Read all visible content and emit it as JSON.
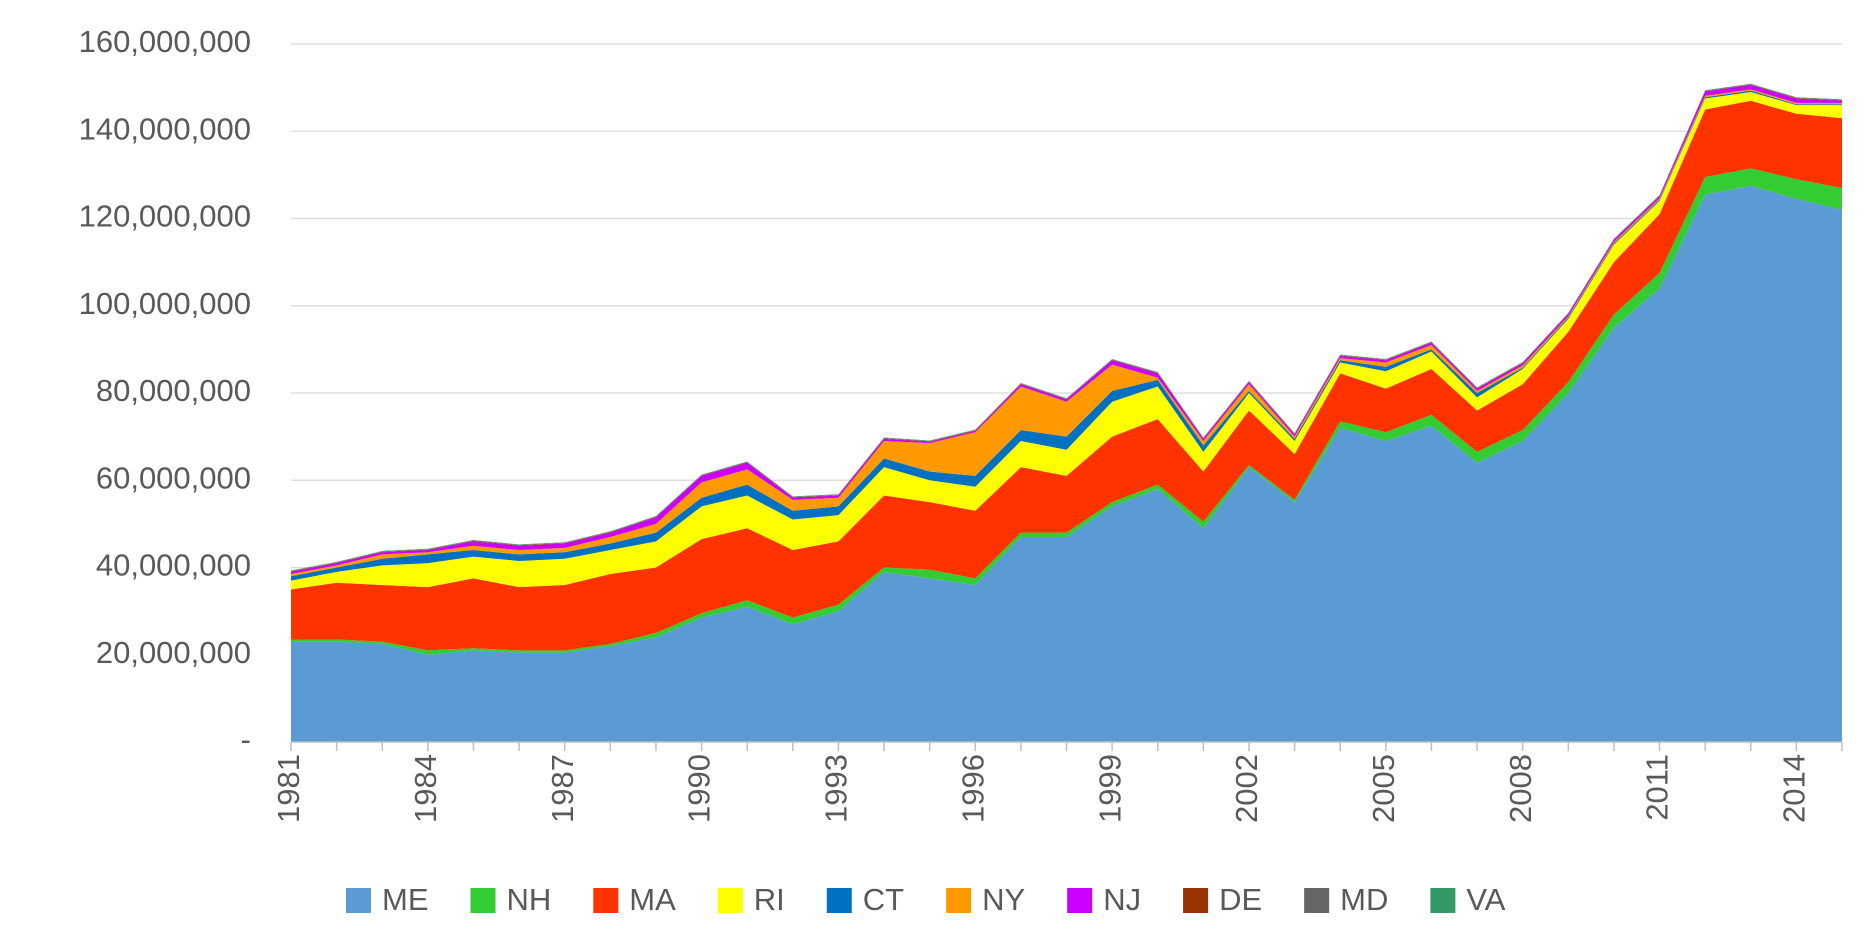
{
  "chart_data": {
    "type": "stacked-area",
    "x": [
      1981,
      1982,
      1983,
      1984,
      1985,
      1986,
      1987,
      1988,
      1989,
      1990,
      1991,
      1992,
      1993,
      1994,
      1995,
      1996,
      1997,
      1998,
      1999,
      2000,
      2001,
      2002,
      2003,
      2004,
      2005,
      2006,
      2007,
      2008,
      2009,
      2010,
      2011,
      2012,
      2013,
      2014,
      2015
    ],
    "xlim": [
      1981,
      2015
    ],
    "xticks": [
      1981,
      1984,
      1987,
      1990,
      1993,
      1996,
      1999,
      2002,
      2005,
      2008,
      2011,
      2014
    ],
    "ylim": [
      0,
      160000000
    ],
    "yticks": [
      {
        "value": 0,
        "label": "-"
      },
      {
        "value": 20000000,
        "label": "20,000,000"
      },
      {
        "value": 40000000,
        "label": "40,000,000"
      },
      {
        "value": 60000000,
        "label": "60,000,000"
      },
      {
        "value": 80000000,
        "label": "80,000,000"
      },
      {
        "value": 100000000,
        "label": "100,000,000"
      },
      {
        "value": 120000000,
        "label": "120,000,000"
      },
      {
        "value": 140000000,
        "label": "140,000,000"
      },
      {
        "value": 160000000,
        "label": "160,000,000"
      }
    ],
    "grid": true,
    "legend": "bottom",
    "series": [
      {
        "name": "ME",
        "color": "#5b9bd5",
        "values": [
          23000000,
          23000000,
          22500000,
          20000000,
          21000000,
          20500000,
          20500000,
          22000000,
          24000000,
          28500000,
          31000000,
          27000000,
          30000000,
          39000000,
          37500000,
          36000000,
          47000000,
          47000000,
          54000000,
          58000000,
          49000000,
          63000000,
          55000000,
          72000000,
          69000000,
          72500000,
          64000000,
          69000000,
          80000000,
          95000000,
          104000000,
          125500000,
          127500000,
          124500000,
          122000000
        ]
      },
      {
        "name": "NH",
        "color": "#33cc33",
        "values": [
          500000,
          500000,
          500000,
          1000000,
          500000,
          500000,
          500000,
          500000,
          1000000,
          1000000,
          1500000,
          1500000,
          1500000,
          1000000,
          2000000,
          1500000,
          1000000,
          1000000,
          1000000,
          1000000,
          1500000,
          500000,
          500000,
          1500000,
          2000000,
          2500000,
          2500000,
          2500000,
          2500000,
          3000000,
          3500000,
          4000000,
          4000000,
          4500000,
          5000000
        ]
      },
      {
        "name": "MA",
        "color": "#ff3300",
        "values": [
          11500000,
          13000000,
          13000000,
          14500000,
          16000000,
          14500000,
          15000000,
          16000000,
          15000000,
          17000000,
          16500000,
          15500000,
          14500000,
          16500000,
          15500000,
          15500000,
          15000000,
          13000000,
          15000000,
          15000000,
          11500000,
          12500000,
          10500000,
          11000000,
          10000000,
          10500000,
          9500000,
          10500000,
          11500000,
          12000000,
          13500000,
          15500000,
          15500000,
          15000000,
          16000000
        ]
      },
      {
        "name": "RI",
        "color": "#ffff00",
        "values": [
          2000000,
          2500000,
          4500000,
          5500000,
          5000000,
          6000000,
          6000000,
          5500000,
          6000000,
          7500000,
          7500000,
          7000000,
          6000000,
          6500000,
          5000000,
          5500000,
          6000000,
          6000000,
          8000000,
          7500000,
          4500000,
          4000000,
          3000000,
          2500000,
          4000000,
          4000000,
          3000000,
          3500000,
          3000000,
          4000000,
          3000000,
          2500000,
          2000000,
          2000000,
          3000000
        ]
      },
      {
        "name": "CT",
        "color": "#0070c0",
        "values": [
          1000000,
          1000000,
          1500000,
          2000000,
          1500000,
          1500000,
          1500000,
          1500000,
          2000000,
          2000000,
          2500000,
          2000000,
          2000000,
          2000000,
          2000000,
          2500000,
          2500000,
          3000000,
          2500000,
          1500000,
          1500000,
          500000,
          500000,
          500000,
          1000000,
          500000,
          1000000,
          300000,
          300000,
          300000,
          300000,
          300000,
          300000,
          200000,
          200000
        ]
      },
      {
        "name": "NY",
        "color": "#ff9900",
        "values": [
          500000,
          500000,
          1000000,
          500000,
          1000000,
          1000000,
          1000000,
          1500000,
          2000000,
          3500000,
          3500000,
          2500000,
          2000000,
          4000000,
          6500000,
          10000000,
          10000000,
          8000000,
          6000000,
          500000,
          1000000,
          1500000,
          500000,
          500000,
          1000000,
          1000000,
          500000,
          500000,
          300000,
          300000,
          300000,
          300000,
          300000,
          300000,
          300000
        ]
      },
      {
        "name": "NJ",
        "color": "#cc00ff",
        "values": [
          500000,
          500000,
          500000,
          500000,
          1000000,
          1000000,
          1000000,
          1000000,
          1500000,
          1500000,
          1500000,
          500000,
          500000,
          500000,
          300000,
          300000,
          500000,
          500000,
          1000000,
          1000000,
          500000,
          500000,
          500000,
          500000,
          500000,
          500000,
          500000,
          500000,
          500000,
          500000,
          500000,
          1000000,
          1000000,
          1000000,
          500000
        ]
      },
      {
        "name": "DE",
        "color": "#993300",
        "values": [
          100000,
          100000,
          100000,
          100000,
          100000,
          100000,
          100000,
          100000,
          100000,
          100000,
          100000,
          100000,
          100000,
          100000,
          100000,
          100000,
          100000,
          100000,
          100000,
          100000,
          100000,
          100000,
          100000,
          100000,
          100000,
          100000,
          100000,
          100000,
          100000,
          100000,
          100000,
          100000,
          100000,
          100000,
          100000
        ]
      },
      {
        "name": "MD",
        "color": "#666666",
        "values": [
          100000,
          100000,
          100000,
          100000,
          100000,
          100000,
          100000,
          100000,
          100000,
          100000,
          100000,
          100000,
          100000,
          100000,
          100000,
          100000,
          100000,
          100000,
          100000,
          100000,
          100000,
          100000,
          100000,
          100000,
          100000,
          100000,
          100000,
          100000,
          100000,
          100000,
          100000,
          100000,
          100000,
          100000,
          100000
        ]
      },
      {
        "name": "VA",
        "color": "#339966",
        "values": [
          100000,
          100000,
          100000,
          100000,
          100000,
          100000,
          100000,
          100000,
          100000,
          100000,
          100000,
          100000,
          100000,
          100000,
          100000,
          100000,
          100000,
          100000,
          100000,
          100000,
          100000,
          100000,
          100000,
          100000,
          100000,
          100000,
          100000,
          100000,
          100000,
          100000,
          100000,
          100000,
          100000,
          100000,
          100000
        ]
      }
    ]
  }
}
